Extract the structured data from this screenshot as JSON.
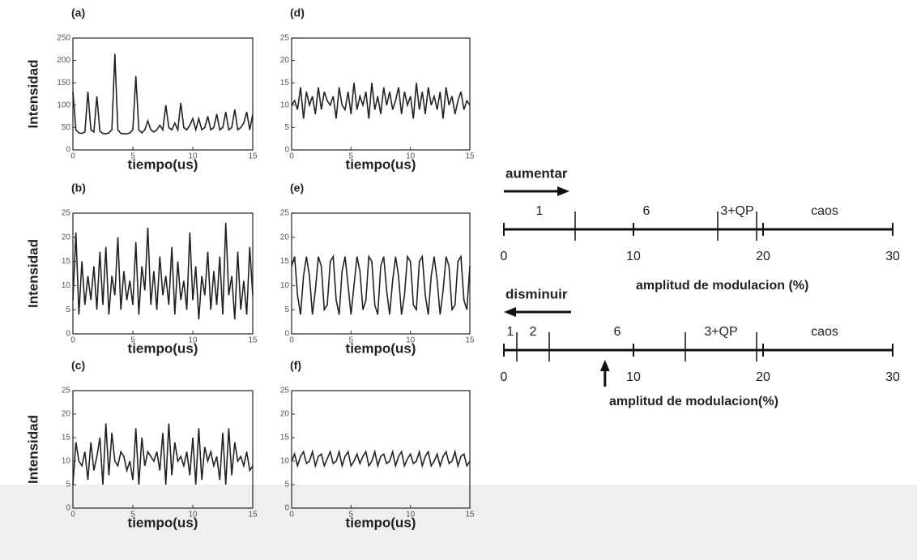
{
  "chart_data": [
    {
      "type": "line",
      "title": "(a)",
      "xlabel": "tiempo(us)",
      "ylabel": "Intensidad",
      "color": "#222",
      "xlim": [
        0,
        15
      ],
      "xticks": [
        0,
        5,
        10,
        15
      ],
      "ylim": [
        0,
        250
      ],
      "yticks": [
        0,
        50,
        100,
        150,
        200,
        250
      ],
      "x": [
        0,
        0.25,
        0.5,
        0.75,
        1,
        1.25,
        1.5,
        1.75,
        2,
        2.25,
        2.5,
        2.75,
        3,
        3.25,
        3.5,
        3.75,
        4,
        4.25,
        4.5,
        4.75,
        5,
        5.25,
        5.5,
        5.75,
        6,
        6.25,
        6.5,
        6.75,
        7,
        7.25,
        7.5,
        7.75,
        8,
        8.25,
        8.5,
        8.75,
        9,
        9.25,
        9.5,
        9.75,
        10,
        10.25,
        10.5,
        10.75,
        11,
        11.25,
        11.5,
        11.75,
        12,
        12.25,
        12.5,
        12.75,
        13,
        13.25,
        13.5,
        13.75,
        14,
        14.25,
        14.5,
        14.75,
        15
      ],
      "values": [
        130,
        45,
        38,
        37,
        40,
        130,
        45,
        40,
        120,
        42,
        37,
        36,
        38,
        45,
        215,
        45,
        37,
        36,
        36,
        38,
        45,
        165,
        45,
        38,
        45,
        65,
        45,
        40,
        45,
        55,
        45,
        100,
        50,
        45,
        60,
        45,
        105,
        50,
        45,
        55,
        70,
        45,
        70,
        45,
        50,
        75,
        45,
        50,
        80,
        45,
        50,
        85,
        45,
        50,
        90,
        45,
        50,
        60,
        85,
        45,
        80
      ]
    },
    {
      "type": "line",
      "title": "(b)",
      "xlabel": "tiempo(us)",
      "ylabel": "Intensidad",
      "color": "#222",
      "xlim": [
        0,
        15
      ],
      "xticks": [
        0,
        5,
        10,
        15
      ],
      "ylim": [
        0,
        25
      ],
      "yticks": [
        0,
        5,
        10,
        15,
        20,
        25
      ],
      "x": [
        0,
        0.25,
        0.5,
        0.75,
        1,
        1.25,
        1.5,
        1.75,
        2,
        2.25,
        2.5,
        2.75,
        3,
        3.25,
        3.5,
        3.75,
        4,
        4.25,
        4.5,
        4.75,
        5,
        5.25,
        5.5,
        5.75,
        6,
        6.25,
        6.5,
        6.75,
        7,
        7.25,
        7.5,
        7.75,
        8,
        8.25,
        8.5,
        8.75,
        9,
        9.25,
        9.5,
        9.75,
        10,
        10.25,
        10.5,
        10.75,
        11,
        11.25,
        11.5,
        11.75,
        12,
        12.25,
        12.5,
        12.75,
        13,
        13.25,
        13.5,
        13.75,
        14,
        14.25,
        14.5,
        14.75,
        15
      ],
      "values": [
        7,
        21,
        4,
        15,
        6,
        12,
        7,
        14,
        5,
        17,
        6,
        18,
        4,
        12,
        8,
        20,
        5,
        13,
        7,
        11,
        6,
        19,
        4,
        14,
        9,
        22,
        6,
        13,
        5,
        16,
        8,
        12,
        6,
        18,
        4,
        15,
        7,
        11,
        5,
        21,
        7,
        14,
        3,
        12,
        8,
        17,
        5,
        13,
        6,
        16,
        4,
        23,
        8,
        12,
        3,
        17,
        5,
        11,
        4,
        18,
        8
      ]
    },
    {
      "type": "line",
      "title": "(c)",
      "xlabel": "tiempo(us)",
      "ylabel": "Intensidad",
      "color": "#222",
      "xlim": [
        0,
        15
      ],
      "xticks": [
        0,
        5,
        10,
        15
      ],
      "ylim": [
        0,
        25
      ],
      "yticks": [
        0,
        5,
        10,
        15,
        20,
        25
      ],
      "x": [
        0,
        0.25,
        0.5,
        0.75,
        1,
        1.25,
        1.5,
        1.75,
        2,
        2.25,
        2.5,
        2.75,
        3,
        3.25,
        3.5,
        3.75,
        4,
        4.25,
        4.5,
        4.75,
        5,
        5.25,
        5.5,
        5.75,
        6,
        6.25,
        6.5,
        6.75,
        7,
        7.25,
        7.5,
        7.75,
        8,
        8.25,
        8.5,
        8.75,
        9,
        9.25,
        9.5,
        9.75,
        10,
        10.25,
        10.5,
        10.75,
        11,
        11.25,
        11.5,
        11.75,
        12,
        12.25,
        12.5,
        12.75,
        13,
        13.25,
        13.5,
        13.75,
        14,
        14.25,
        14.5,
        14.75,
        15
      ],
      "values": [
        5,
        14,
        10,
        9,
        12,
        6,
        14,
        8,
        11,
        15,
        5,
        18,
        7,
        16,
        10,
        9,
        12,
        11,
        8,
        10,
        6,
        17,
        5,
        15,
        9,
        12,
        11,
        10,
        12,
        8,
        16,
        5,
        18,
        7,
        14,
        10,
        11,
        9,
        12,
        7,
        15,
        5,
        17,
        6,
        13,
        10,
        12,
        9,
        11,
        6,
        16,
        5,
        17,
        7,
        14,
        10,
        11,
        9,
        12,
        8,
        9
      ]
    },
    {
      "type": "line",
      "title": "(d)",
      "xlabel": "tiempo(us)",
      "color": "#222",
      "xlim": [
        0,
        15
      ],
      "xticks": [
        0,
        5,
        10,
        15
      ],
      "ylim": [
        0,
        25
      ],
      "yticks": [
        0,
        5,
        10,
        15,
        20,
        25
      ],
      "x": [
        0,
        0.25,
        0.5,
        0.75,
        1,
        1.25,
        1.5,
        1.75,
        2,
        2.25,
        2.5,
        2.75,
        3,
        3.25,
        3.5,
        3.75,
        4,
        4.25,
        4.5,
        4.75,
        5,
        5.25,
        5.5,
        5.75,
        6,
        6.25,
        6.5,
        6.75,
        7,
        7.25,
        7.5,
        7.75,
        8,
        8.25,
        8.5,
        8.75,
        9,
        9.25,
        9.5,
        9.75,
        10,
        10.25,
        10.5,
        10.75,
        11,
        11.25,
        11.5,
        11.75,
        12,
        12.25,
        12.5,
        12.75,
        13,
        13.25,
        13.5,
        13.75,
        14,
        14.25,
        14.5,
        14.75,
        15
      ],
      "values": [
        10,
        11,
        9,
        14,
        7,
        13,
        10,
        12,
        8,
        14,
        9,
        13,
        11,
        10,
        12,
        7,
        14,
        10,
        9,
        13,
        8,
        15,
        9,
        12,
        10,
        13,
        7,
        15,
        9,
        12,
        8,
        14,
        10,
        13,
        9,
        11,
        14,
        8,
        13,
        10,
        12,
        7,
        15,
        9,
        13,
        8,
        14,
        10,
        12,
        9,
        13,
        7,
        14,
        10,
        12,
        8,
        11,
        13,
        9,
        11,
        10
      ]
    },
    {
      "type": "line",
      "title": "(e)",
      "xlabel": "tiempo(us)",
      "color": "#222",
      "xlim": [
        0,
        15
      ],
      "xticks": [
        0,
        5,
        10,
        15
      ],
      "ylim": [
        0,
        25
      ],
      "yticks": [
        0,
        5,
        10,
        15,
        20,
        25
      ],
      "x": [
        0,
        0.25,
        0.5,
        0.75,
        1,
        1.25,
        1.5,
        1.75,
        2,
        2.25,
        2.5,
        2.75,
        3,
        3.25,
        3.5,
        3.75,
        4,
        4.25,
        4.5,
        4.75,
        5,
        5.25,
        5.5,
        5.75,
        6,
        6.25,
        6.5,
        6.75,
        7,
        7.25,
        7.5,
        7.75,
        8,
        8.25,
        8.5,
        8.75,
        9,
        9.25,
        9.5,
        9.75,
        10,
        10.25,
        10.5,
        10.75,
        11,
        11.25,
        11.5,
        11.75,
        12,
        12.25,
        12.5,
        12.75,
        13,
        13.25,
        13.5,
        13.75,
        14,
        14.25,
        14.5,
        14.75,
        15
      ],
      "values": [
        14,
        16,
        8,
        4,
        12,
        16,
        12,
        4,
        9,
        16,
        14,
        5,
        6,
        15,
        16,
        7,
        4,
        13,
        16,
        10,
        4,
        10,
        16,
        13,
        5,
        7,
        16,
        15,
        6,
        4,
        14,
        16,
        9,
        4,
        11,
        16,
        12,
        4,
        8,
        16,
        15,
        6,
        5,
        15,
        16,
        8,
        4,
        12,
        16,
        11,
        4,
        9,
        16,
        14,
        5,
        6,
        15,
        16,
        7,
        5,
        14
      ]
    },
    {
      "type": "line",
      "title": "(f)",
      "xlabel": "tiempo(us)",
      "color": "#222",
      "xlim": [
        0,
        15
      ],
      "xticks": [
        0,
        5,
        10,
        15
      ],
      "ylim": [
        0,
        25
      ],
      "yticks": [
        0,
        5,
        10,
        15,
        20,
        25
      ],
      "x": [
        0,
        0.25,
        0.5,
        0.75,
        1,
        1.25,
        1.5,
        1.75,
        2,
        2.25,
        2.5,
        2.75,
        3,
        3.25,
        3.5,
        3.75,
        4,
        4.25,
        4.5,
        4.75,
        5,
        5.25,
        5.5,
        5.75,
        6,
        6.25,
        6.5,
        6.75,
        7,
        7.25,
        7.5,
        7.75,
        8,
        8.25,
        8.5,
        8.75,
        9,
        9.25,
        9.5,
        9.75,
        10,
        10.25,
        10.5,
        10.75,
        11,
        11.25,
        11.5,
        11.75,
        12,
        12.25,
        12.5,
        12.75,
        13,
        13.25,
        13.5,
        13.75,
        14,
        14.25,
        14.5,
        14.75,
        15
      ],
      "values": [
        10,
        11.5,
        9,
        11,
        12,
        9.5,
        10,
        12,
        9,
        11,
        11.5,
        9,
        10.5,
        12,
        9.5,
        10,
        12,
        9,
        11,
        12,
        9,
        10,
        11.5,
        9.5,
        11,
        12,
        9,
        10,
        12,
        9,
        11,
        11.5,
        9.5,
        10,
        12,
        9,
        11,
        12,
        9,
        10.5,
        11.5,
        9.5,
        10,
        12,
        9,
        11,
        12,
        9,
        10,
        11.5,
        9,
        11,
        12,
        9.5,
        10,
        12,
        9,
        11,
        11.5,
        9,
        10
      ]
    },
    {
      "type": "bifurcation",
      "title": "aumentar",
      "direction": "right",
      "xlabel": "amplitud de modulacion (%)",
      "xlim": [
        0,
        30
      ],
      "xticks": [
        0,
        10,
        20,
        30
      ],
      "boundaries": [
        5.5,
        16.5,
        19.5
      ],
      "regions": [
        "1",
        "6",
        "3+QP",
        "caos"
      ]
    },
    {
      "type": "bifurcation",
      "title": "disminuir",
      "direction": "left",
      "xlabel": "amplitud de modulacion(%)",
      "xlim": [
        0,
        30
      ],
      "xticks": [
        0,
        10,
        20,
        30
      ],
      "boundaries": [
        1,
        3.5,
        14,
        19.5
      ],
      "regions": [
        "1",
        "2",
        "6",
        "3+QP",
        "caos"
      ],
      "arrow_at": 7.8
    }
  ]
}
